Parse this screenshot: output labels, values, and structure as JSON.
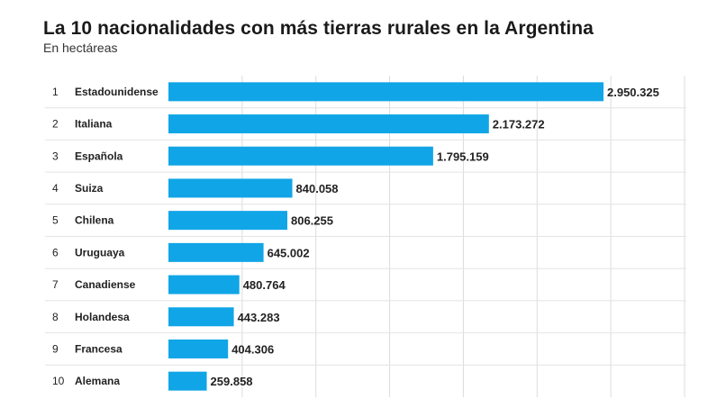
{
  "chart_data": {
    "type": "bar",
    "orientation": "horizontal",
    "title": "La 10 nacionalidades con más tierras rurales en la Argentina",
    "subtitle": "En hectáreas",
    "ranks": [
      "1",
      "2",
      "3",
      "4",
      "5",
      "6",
      "7",
      "8",
      "9",
      "10"
    ],
    "categories": [
      "Estadounidense",
      "Italiana",
      "Española",
      "Suiza",
      "Chilena",
      "Uruguaya",
      "Canadiense",
      "Holandesa",
      "Francesa",
      "Alemana"
    ],
    "values": [
      2950325,
      2173272,
      1795159,
      840058,
      806255,
      645002,
      480764,
      443283,
      404306,
      259858
    ],
    "value_labels": [
      "2.950.325",
      "2.173.272",
      "1.795.159",
      "840.058",
      "806.255",
      "645.002",
      "480.764",
      "443.283",
      "404.306",
      "259.858"
    ],
    "xlim": [
      0,
      3500000
    ],
    "grid": true,
    "bar_color": "#10a5e6",
    "grid_color": "#dcdcdc"
  }
}
